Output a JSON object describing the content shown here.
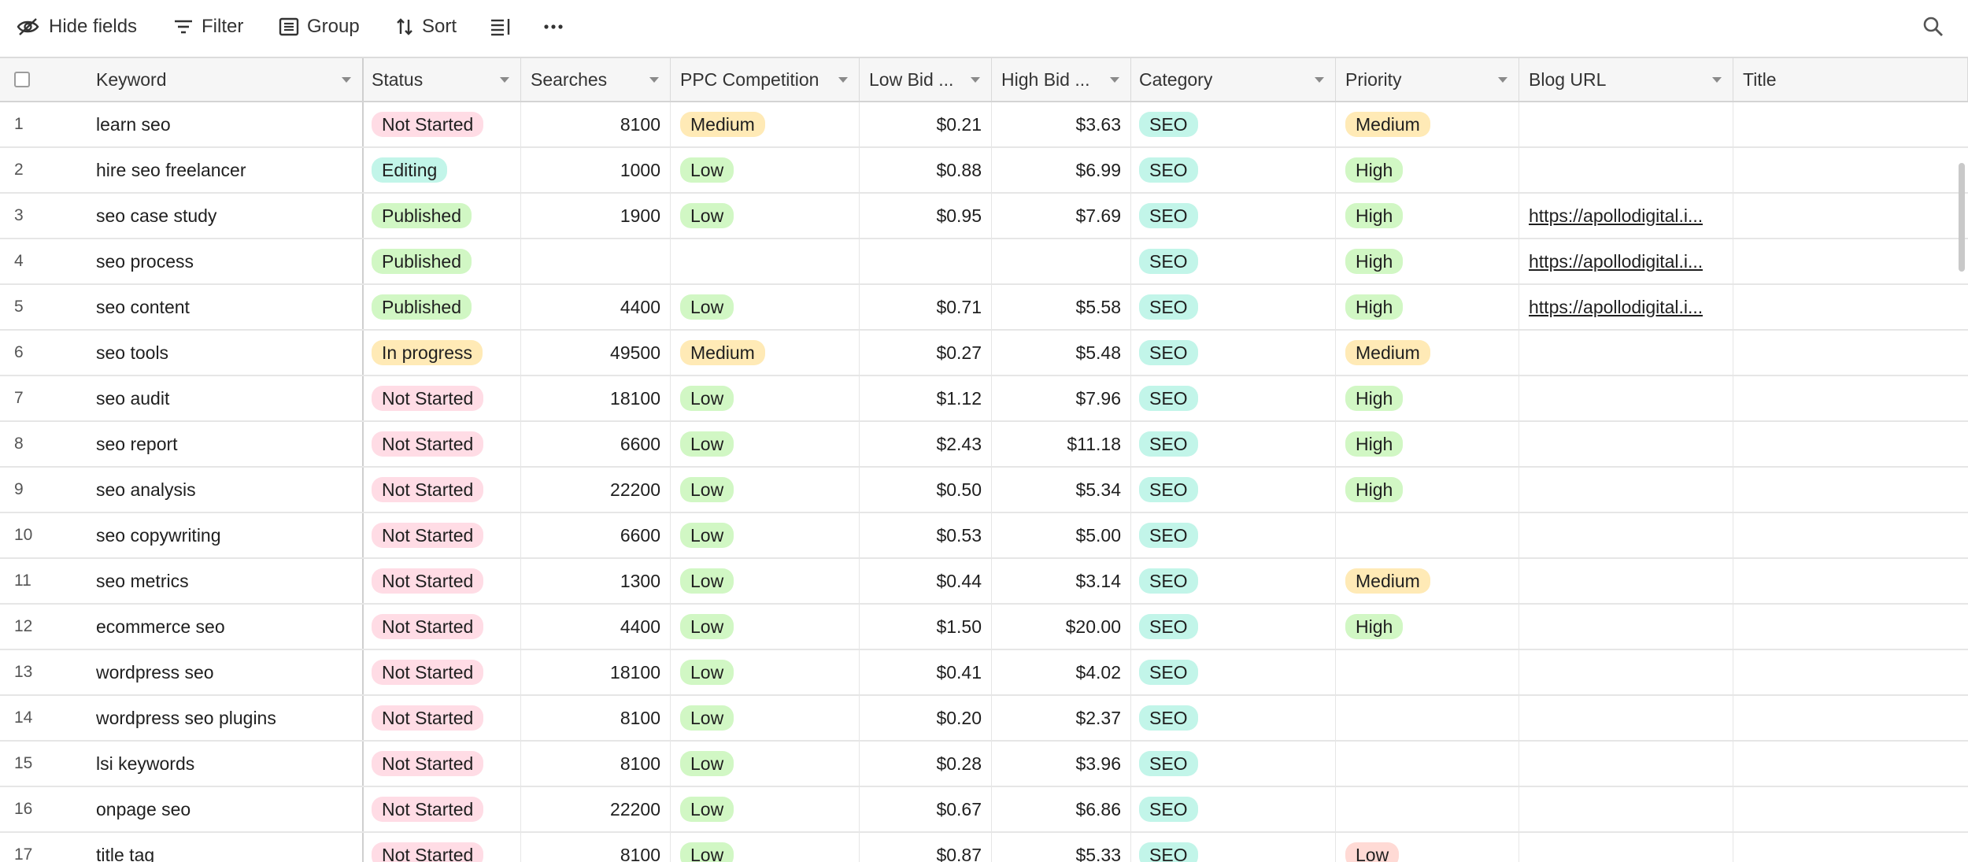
{
  "toolbar": {
    "hide_fields": "Hide fields",
    "filter": "Filter",
    "group": "Group",
    "sort": "Sort"
  },
  "columns": {
    "keyword": "Keyword",
    "status": "Status",
    "searches": "Searches",
    "ppc": "PPC Competition",
    "low_bid": "Low Bid ...",
    "high_bid": "High Bid ...",
    "category": "Category",
    "priority": "Priority",
    "blog_url": "Blog URL",
    "title": "Title"
  },
  "colors": {
    "Not Started": "#ffdce5",
    "Editing": "#c2f5e9",
    "Published": "#d1f7c4",
    "In progress": "#ffeab6",
    "Medium": "#ffeab6",
    "Low": "#d1f7c4",
    "SEO": "#c2f5e9",
    "High": "#d1f7c4",
    "Low-priority": "#ffdad5"
  },
  "rows": [
    {
      "num": "1",
      "keyword": "learn seo",
      "status": "Not Started",
      "searches": "8100",
      "ppc": "Medium",
      "low_bid": "$0.21",
      "high_bid": "$3.63",
      "category": "SEO",
      "priority": "Medium",
      "blog_url": ""
    },
    {
      "num": "2",
      "keyword": "hire seo freelancer",
      "status": "Editing",
      "searches": "1000",
      "ppc": "Low",
      "low_bid": "$0.88",
      "high_bid": "$6.99",
      "category": "SEO",
      "priority": "High",
      "blog_url": ""
    },
    {
      "num": "3",
      "keyword": "seo case study",
      "status": "Published",
      "searches": "1900",
      "ppc": "Low",
      "low_bid": "$0.95",
      "high_bid": "$7.69",
      "category": "SEO",
      "priority": "High",
      "blog_url": "https://apollodigital.i..."
    },
    {
      "num": "4",
      "keyword": "seo process",
      "status": "Published",
      "searches": "",
      "ppc": "",
      "low_bid": "",
      "high_bid": "",
      "category": "SEO",
      "priority": "High",
      "blog_url": "https://apollodigital.i..."
    },
    {
      "num": "5",
      "keyword": "seo content",
      "status": "Published",
      "searches": "4400",
      "ppc": "Low",
      "low_bid": "$0.71",
      "high_bid": "$5.58",
      "category": "SEO",
      "priority": "High",
      "blog_url": "https://apollodigital.i..."
    },
    {
      "num": "6",
      "keyword": "seo tools",
      "status": "In progress",
      "searches": "49500",
      "ppc": "Medium",
      "low_bid": "$0.27",
      "high_bid": "$5.48",
      "category": "SEO",
      "priority": "Medium",
      "blog_url": ""
    },
    {
      "num": "7",
      "keyword": "seo audit",
      "status": "Not Started",
      "searches": "18100",
      "ppc": "Low",
      "low_bid": "$1.12",
      "high_bid": "$7.96",
      "category": "SEO",
      "priority": "High",
      "blog_url": ""
    },
    {
      "num": "8",
      "keyword": "seo report",
      "status": "Not Started",
      "searches": "6600",
      "ppc": "Low",
      "low_bid": "$2.43",
      "high_bid": "$11.18",
      "category": "SEO",
      "priority": "High",
      "blog_url": ""
    },
    {
      "num": "9",
      "keyword": "seo analysis",
      "status": "Not Started",
      "searches": "22200",
      "ppc": "Low",
      "low_bid": "$0.50",
      "high_bid": "$5.34",
      "category": "SEO",
      "priority": "High",
      "blog_url": ""
    },
    {
      "num": "10",
      "keyword": "seo copywriting",
      "status": "Not Started",
      "searches": "6600",
      "ppc": "Low",
      "low_bid": "$0.53",
      "high_bid": "$5.00",
      "category": "SEO",
      "priority": "",
      "blog_url": ""
    },
    {
      "num": "11",
      "keyword": "seo metrics",
      "status": "Not Started",
      "searches": "1300",
      "ppc": "Low",
      "low_bid": "$0.44",
      "high_bid": "$3.14",
      "category": "SEO",
      "priority": "Medium",
      "blog_url": ""
    },
    {
      "num": "12",
      "keyword": "ecommerce seo",
      "status": "Not Started",
      "searches": "4400",
      "ppc": "Low",
      "low_bid": "$1.50",
      "high_bid": "$20.00",
      "category": "SEO",
      "priority": "High",
      "blog_url": ""
    },
    {
      "num": "13",
      "keyword": "wordpress seo",
      "status": "Not Started",
      "searches": "18100",
      "ppc": "Low",
      "low_bid": "$0.41",
      "high_bid": "$4.02",
      "category": "SEO",
      "priority": "",
      "blog_url": ""
    },
    {
      "num": "14",
      "keyword": "wordpress seo plugins",
      "status": "Not Started",
      "searches": "8100",
      "ppc": "Low",
      "low_bid": "$0.20",
      "high_bid": "$2.37",
      "category": "SEO",
      "priority": "",
      "blog_url": ""
    },
    {
      "num": "15",
      "keyword": "lsi keywords",
      "status": "Not Started",
      "searches": "8100",
      "ppc": "Low",
      "low_bid": "$0.28",
      "high_bid": "$3.96",
      "category": "SEO",
      "priority": "",
      "blog_url": ""
    },
    {
      "num": "16",
      "keyword": "onpage seo",
      "status": "Not Started",
      "searches": "22200",
      "ppc": "Low",
      "low_bid": "$0.67",
      "high_bid": "$6.86",
      "category": "SEO",
      "priority": "",
      "blog_url": ""
    },
    {
      "num": "17",
      "keyword": "title tag",
      "status": "Not Started",
      "searches": "8100",
      "ppc": "Low",
      "low_bid": "$0.87",
      "high_bid": "$5.33",
      "category": "SEO",
      "priority": "Low",
      "blog_url": ""
    }
  ]
}
